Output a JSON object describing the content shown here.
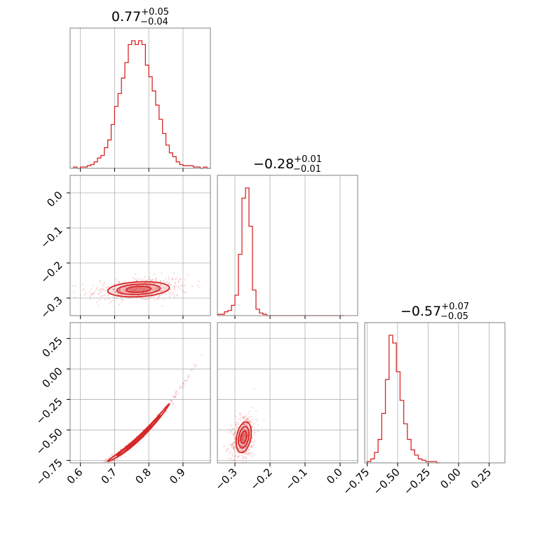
{
  "chart_data": {
    "type": "corner",
    "color": "#d62728",
    "parameters": [
      {
        "index": 0,
        "median": 0.77,
        "title": {
          "main": "0.77",
          "plus": "+0.05",
          "minus": "−0.04"
        },
        "range": [
          0.57,
          0.98
        ],
        "ticks": [
          0.6,
          0.7,
          0.8,
          0.9
        ],
        "tick_labels": [
          "0.6",
          "0.7",
          "0.8",
          "0.9"
        ]
      },
      {
        "index": 1,
        "median": -0.28,
        "title": {
          "main": "−0.28",
          "plus": "+0.01",
          "minus": "−0.01"
        },
        "range": [
          -0.35,
          0.05
        ],
        "ticks": [
          -0.3,
          -0.2,
          -0.1,
          0.0
        ],
        "tick_labels": [
          "−0.3",
          "−0.2",
          "−0.1",
          "0.0"
        ]
      },
      {
        "index": 2,
        "median": -0.57,
        "title": {
          "main": "−0.57",
          "plus": "+0.07",
          "minus": "−0.05"
        },
        "range": [
          -0.77,
          0.38
        ],
        "ticks": [
          -0.75,
          -0.5,
          -0.25,
          0.0,
          0.25
        ],
        "tick_labels": [
          "−0.75",
          "−0.50",
          "−0.25",
          "0.00",
          "0.25"
        ]
      }
    ],
    "histograms": [
      {
        "param": 0,
        "bins": [
          0.58,
          0.59,
          0.6,
          0.61,
          0.62,
          0.63,
          0.64,
          0.65,
          0.66,
          0.67,
          0.68,
          0.69,
          0.7,
          0.71,
          0.72,
          0.73,
          0.74,
          0.75,
          0.76,
          0.77,
          0.78,
          0.79,
          0.8,
          0.81,
          0.82,
          0.83,
          0.84,
          0.85,
          0.86,
          0.87,
          0.88,
          0.89,
          0.9,
          0.91,
          0.92,
          0.93,
          0.94,
          0.95,
          0.96,
          0.97
        ],
        "counts": [
          1,
          0,
          1,
          1,
          2,
          3,
          5,
          8,
          10,
          16,
          22,
          34,
          48,
          58,
          70,
          82,
          96,
          99,
          96,
          99,
          96,
          80,
          71,
          60,
          49,
          38,
          27,
          18,
          12,
          9,
          5,
          3,
          2,
          2,
          2,
          1,
          1,
          0,
          1,
          0
        ]
      },
      {
        "param": 1,
        "bins": [
          -0.35,
          -0.34,
          -0.33,
          -0.32,
          -0.31,
          -0.3,
          -0.29,
          -0.28,
          -0.27,
          -0.26,
          -0.25,
          -0.24,
          -0.23,
          -0.22,
          -0.21,
          -0.2,
          -0.15,
          -0.1,
          -0.05,
          0.0
        ],
        "counts": [
          1,
          1,
          3,
          4,
          8,
          16,
          48,
          92,
          100,
          70,
          20,
          5,
          2,
          1,
          0,
          0,
          0,
          0,
          0,
          0
        ]
      },
      {
        "param": 2,
        "bins": [
          -0.75,
          -0.72,
          -0.69,
          -0.66,
          -0.63,
          -0.6,
          -0.57,
          -0.54,
          -0.51,
          -0.48,
          -0.45,
          -0.42,
          -0.39,
          -0.36,
          -0.33,
          -0.3,
          -0.27,
          -0.24,
          -0.21,
          -0.18
        ],
        "counts": [
          1,
          3,
          8,
          18,
          38,
          64,
          98,
          92,
          70,
          48,
          30,
          18,
          10,
          6,
          3,
          2,
          1,
          1,
          1,
          0
        ]
      }
    ],
    "grid": true
  }
}
